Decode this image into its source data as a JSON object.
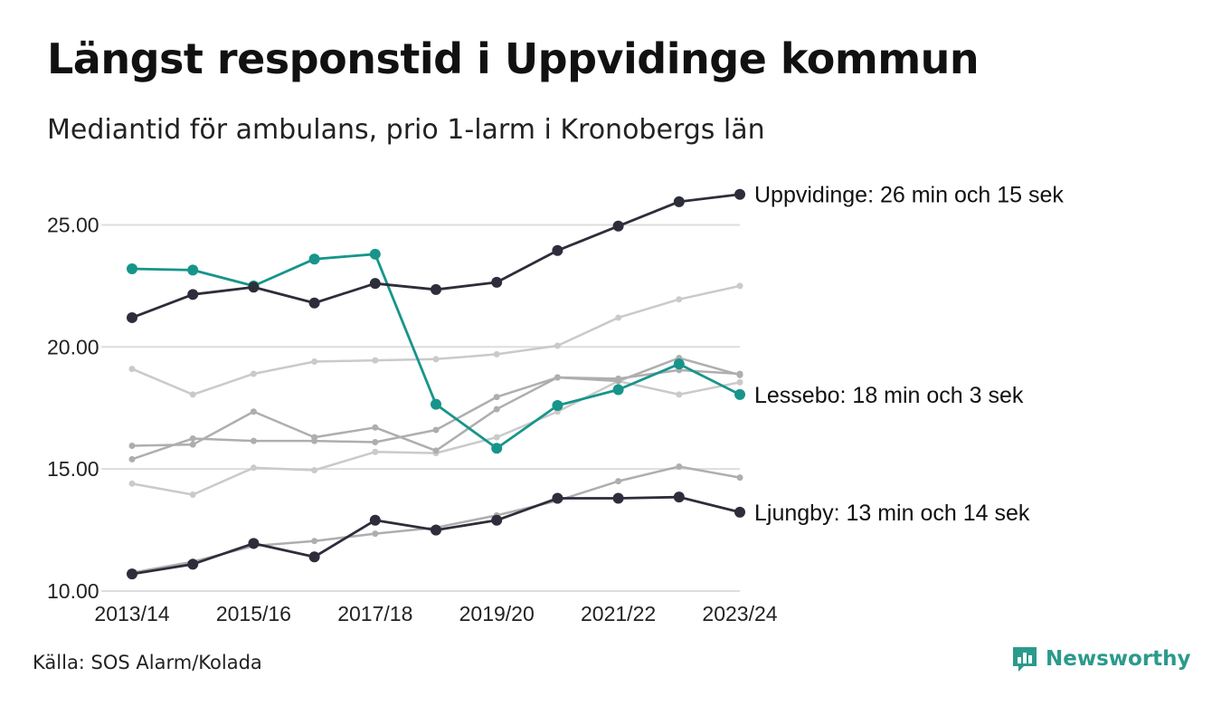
{
  "header": {
    "title": "Längst responstid i Uppvidinge kommun",
    "subtitle": "Mediantid för ambulans, prio 1-larm i Kronobergs län"
  },
  "footer": {
    "source": "Källa: SOS Alarm/Kolada",
    "brand": "Newsworthy",
    "brand_icon": "newsworthy-logo-icon"
  },
  "colors": {
    "highlight_dark": "#2d2d3b",
    "highlight_teal": "#17958a",
    "other_light": "#cacaca",
    "other_mid": "#aeaeae",
    "grid": "#dddddd"
  },
  "chart_data": {
    "type": "line",
    "categories": [
      "2013/14",
      "2014/15",
      "2015/16",
      "2016/17",
      "2017/18",
      "2018/19",
      "2019/20",
      "2020/21",
      "2021/22",
      "2022/23",
      "2023/24"
    ],
    "tick_labels": [
      "2013/14",
      "2015/16",
      "2017/18",
      "2019/20",
      "2021/22",
      "2023/24"
    ],
    "y_ticks": [
      "10.00",
      "15.00",
      "20.00",
      "25.00"
    ],
    "ylim": [
      10,
      26.5
    ],
    "grid": true,
    "series": [
      {
        "values": [
          19.1,
          18.05,
          18.9,
          19.4,
          19.45,
          19.5,
          19.7,
          20.05,
          21.2,
          21.95,
          22.5
        ],
        "style": "light"
      },
      {
        "values": [
          14.4,
          13.95,
          15.05,
          14.95,
          15.7,
          15.65,
          16.3,
          17.35,
          18.6,
          18.05,
          18.55
        ],
        "style": "light"
      },
      {
        "values": [
          15.95,
          16.0,
          17.35,
          16.3,
          16.7,
          15.75,
          17.45,
          18.75,
          18.6,
          19.55,
          18.85
        ],
        "style": "mid"
      },
      {
        "values": [
          15.4,
          16.25,
          16.15,
          16.15,
          16.1,
          16.6,
          17.95,
          18.75,
          18.7,
          19.05,
          18.9
        ],
        "style": "mid"
      },
      {
        "values": [
          10.75,
          11.2,
          11.85,
          12.05,
          12.35,
          12.6,
          13.1,
          13.7,
          14.5,
          15.1,
          14.65
        ],
        "style": "mid"
      },
      {
        "name": "Ljungby",
        "label": "Ljungby: 13 min och 14 sek",
        "values": [
          10.7,
          11.1,
          11.95,
          11.4,
          12.9,
          12.5,
          12.9,
          13.8,
          13.8,
          13.85,
          13.23
        ],
        "style": "dark"
      },
      {
        "name": "Lessebo",
        "label": "Lessebo: 18 min och 3 sek",
        "values": [
          23.2,
          23.15,
          22.5,
          23.6,
          23.8,
          17.65,
          15.85,
          17.6,
          18.25,
          19.3,
          18.05
        ],
        "style": "teal"
      },
      {
        "name": "Uppvidinge",
        "label": "Uppvidinge: 26 min och 15 sek",
        "values": [
          21.2,
          22.15,
          22.45,
          21.8,
          22.6,
          22.35,
          22.65,
          23.95,
          24.95,
          25.95,
          26.25
        ],
        "style": "dark"
      }
    ]
  }
}
